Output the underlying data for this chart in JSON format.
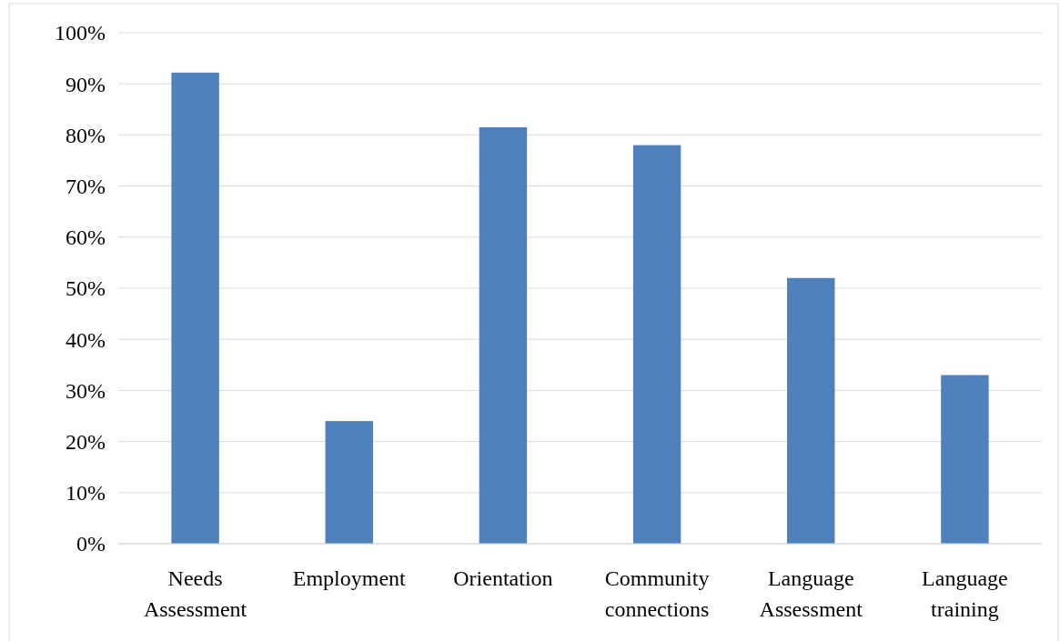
{
  "chart_data": {
    "type": "bar",
    "categories": [
      "Needs Assessment",
      "Employment",
      "Orientation",
      "Community connections",
      "Language Assessment",
      "Language training"
    ],
    "values": [
      92.2,
      24,
      81.5,
      78,
      52,
      33
    ],
    "color": "#4f81bd",
    "ylim": [
      0,
      100
    ],
    "yticks": [
      {
        "value": 0,
        "label": "0%"
      },
      {
        "value": 10,
        "label": "10%"
      },
      {
        "value": 20,
        "label": "20%"
      },
      {
        "value": 30,
        "label": "30%"
      },
      {
        "value": 40,
        "label": "40%"
      },
      {
        "value": 50,
        "label": "50%"
      },
      {
        "value": 60,
        "label": "60%"
      },
      {
        "value": 70,
        "label": "70%"
      },
      {
        "value": 80,
        "label": "80%"
      },
      {
        "value": 90,
        "label": "90%"
      },
      {
        "value": 100,
        "label": "100%"
      }
    ],
    "grid": "y"
  }
}
